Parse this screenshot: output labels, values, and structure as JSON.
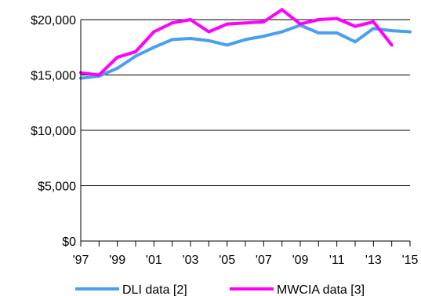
{
  "chart_data": {
    "type": "line",
    "title": "",
    "xlabel": "",
    "ylabel": "",
    "x": [
      1997,
      1998,
      1999,
      2000,
      2001,
      2002,
      2003,
      2004,
      2005,
      2006,
      2007,
      2008,
      2009,
      2010,
      2011,
      2012,
      2013,
      2014,
      2015
    ],
    "xticks": [
      {
        "value": 1997,
        "label": "'97"
      },
      {
        "value": 1999,
        "label": "'99"
      },
      {
        "value": 2001,
        "label": "'01"
      },
      {
        "value": 2003,
        "label": "'03"
      },
      {
        "value": 2005,
        "label": "'05"
      },
      {
        "value": 2007,
        "label": "'07"
      },
      {
        "value": 2009,
        "label": "'09"
      },
      {
        "value": 2011,
        "label": "'11"
      },
      {
        "value": 2013,
        "label": "'13"
      },
      {
        "value": 2015,
        "label": "'15"
      }
    ],
    "yticks": [
      {
        "value": 0,
        "label": "$0"
      },
      {
        "value": 5000,
        "label": "$5,000"
      },
      {
        "value": 10000,
        "label": "$10,000"
      },
      {
        "value": 15000,
        "label": "$15,000"
      },
      {
        "value": 20000,
        "label": "$20,000"
      }
    ],
    "xlim": [
      1997,
      2015
    ],
    "ylim": [
      0,
      20000
    ],
    "grid": "horizontal",
    "legend_position": "bottom",
    "series": [
      {
        "name": "DLI data [2]",
        "color": "#4a9ff0",
        "values": [
          14700,
          14900,
          15600,
          16700,
          17500,
          18200,
          18300,
          18100,
          17700,
          18200,
          18500,
          18900,
          19500,
          18800,
          18800,
          18000,
          19200,
          19000,
          18900
        ]
      },
      {
        "name": "MWCIA data [3]",
        "color": "#ff00ff",
        "values": [
          15200,
          15000,
          16600,
          17100,
          18900,
          19700,
          20000,
          18900,
          19600,
          19700,
          19800,
          20900,
          19600,
          20000,
          20100,
          19400,
          19800,
          17700,
          null
        ]
      }
    ]
  }
}
